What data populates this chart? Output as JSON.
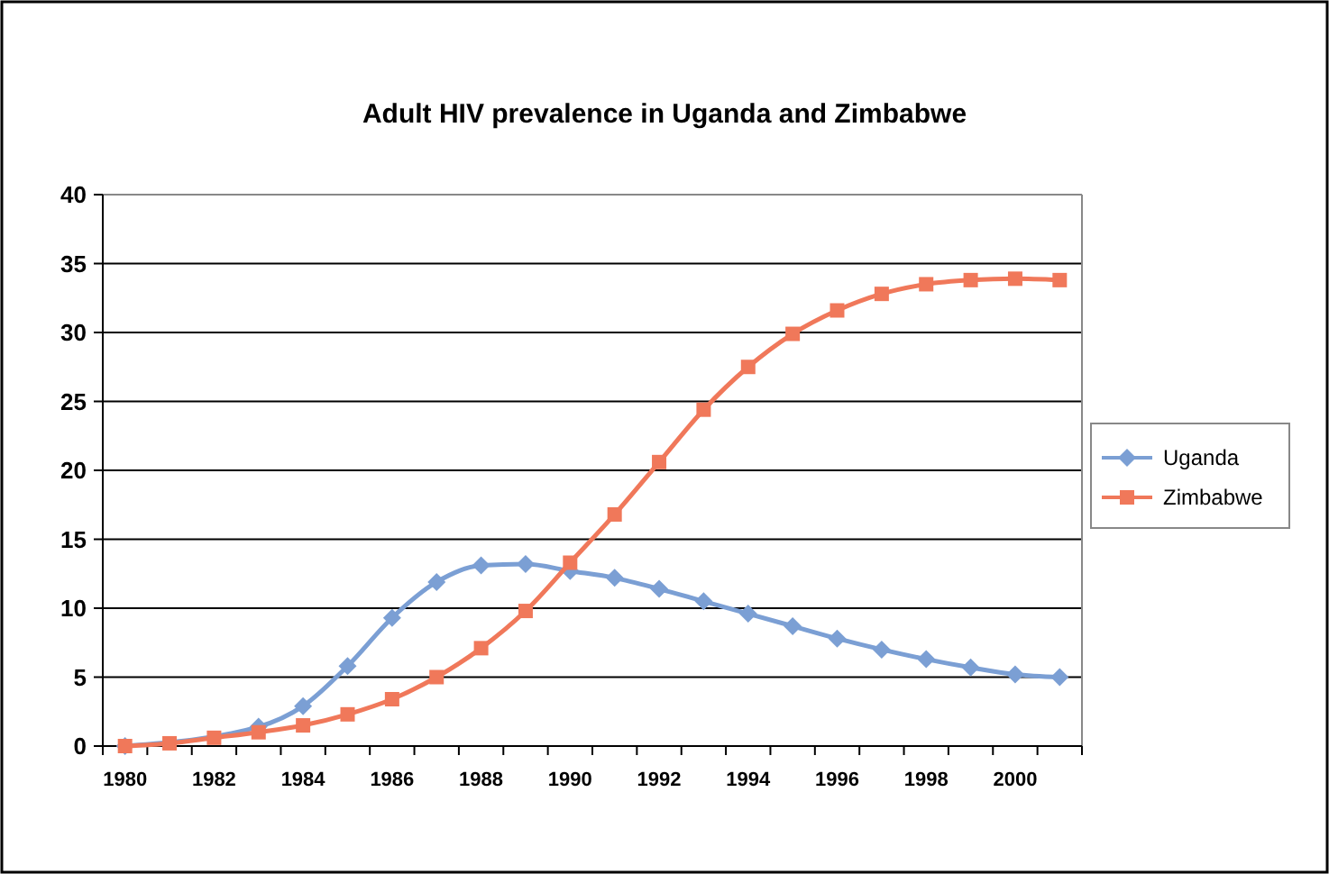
{
  "chart_data": {
    "type": "line",
    "title": "Adult HIV prevalence in Uganda and Zimbabwe",
    "categories": [
      "1980",
      null,
      "1982",
      null,
      "1984",
      null,
      "1986",
      null,
      "1988",
      null,
      "1990",
      null,
      "1992",
      null,
      "1994",
      null,
      "1996",
      null,
      "1998",
      null,
      "2000",
      null
    ],
    "series": [
      {
        "name": "Uganda",
        "color": "#7b9fd4",
        "marker": "diamond",
        "values": [
          0,
          null,
          null,
          1.4,
          2.9,
          5.8,
          9.3,
          11.9,
          13.1,
          13.2,
          12.7,
          12.2,
          11.4,
          10.5,
          9.6,
          8.7,
          7.8,
          7.0,
          6.3,
          5.7,
          5.2,
          5.0
        ]
      },
      {
        "name": "Zimbabwe",
        "color": "#f0785a",
        "marker": "square",
        "values": [
          0,
          0.2,
          0.6,
          1.0,
          1.5,
          2.3,
          3.4,
          5.0,
          7.1,
          9.8,
          13.3,
          16.8,
          20.6,
          24.4,
          27.5,
          29.9,
          31.6,
          32.8,
          33.5,
          33.8,
          33.9,
          33.8
        ]
      }
    ],
    "ylim": [
      0,
      40
    ],
    "yticks": [
      0,
      5,
      10,
      15,
      20,
      25,
      30,
      35,
      40
    ],
    "grid": "y",
    "legend": "right"
  }
}
